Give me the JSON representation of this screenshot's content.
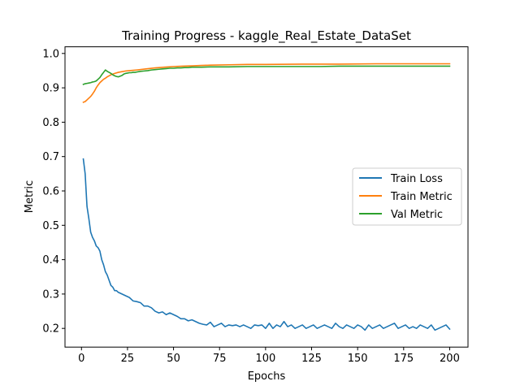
{
  "chart_data": {
    "type": "line",
    "title": "Training Progress - kaggle_Real_Estate_DataSet",
    "xlabel": "Epochs",
    "ylabel": "Metric",
    "xlim": [
      -8.95,
      209.95
    ],
    "ylim": [
      0.1456,
      1.0194
    ],
    "xticks": [
      0,
      25,
      50,
      75,
      100,
      125,
      150,
      175,
      200
    ],
    "yticks": [
      0.2,
      0.3,
      0.4,
      0.5,
      0.6,
      0.7,
      0.8,
      0.9,
      1.0
    ],
    "xtick_labels": [
      "0",
      "25",
      "50",
      "75",
      "100",
      "125",
      "150",
      "175",
      "200"
    ],
    "ytick_labels": [
      "0.2",
      "0.3",
      "0.4",
      "0.5",
      "0.6",
      "0.7",
      "0.8",
      "0.9",
      "1.0"
    ],
    "grid": false,
    "legend_position": "center-right",
    "series": [
      {
        "name": "Train Loss",
        "color": "#1f77b4",
        "x": [
          1,
          2,
          3,
          4,
          5,
          6,
          7,
          8,
          9,
          10,
          11,
          12,
          13,
          14,
          15,
          16,
          17,
          18,
          19,
          20,
          22,
          24,
          26,
          28,
          30,
          32,
          34,
          36,
          38,
          40,
          42,
          44,
          46,
          48,
          50,
          52,
          54,
          56,
          58,
          60,
          62,
          64,
          66,
          68,
          70,
          72,
          74,
          76,
          78,
          80,
          82,
          84,
          86,
          88,
          90,
          92,
          94,
          96,
          98,
          100,
          102,
          104,
          106,
          108,
          110,
          112,
          114,
          116,
          118,
          120,
          122,
          124,
          126,
          128,
          130,
          132,
          134,
          136,
          138,
          140,
          142,
          144,
          146,
          148,
          150,
          152,
          154,
          156,
          158,
          160,
          162,
          164,
          166,
          168,
          170,
          172,
          174,
          176,
          178,
          180,
          182,
          184,
          186,
          188,
          190,
          192,
          194,
          196,
          198,
          200
        ],
        "values": [
          0.693,
          0.65,
          0.555,
          0.52,
          0.48,
          0.465,
          0.455,
          0.44,
          0.435,
          0.425,
          0.4,
          0.385,
          0.365,
          0.355,
          0.34,
          0.325,
          0.32,
          0.31,
          0.31,
          0.305,
          0.3,
          0.295,
          0.29,
          0.28,
          0.278,
          0.275,
          0.265,
          0.265,
          0.26,
          0.25,
          0.245,
          0.248,
          0.24,
          0.245,
          0.24,
          0.235,
          0.228,
          0.228,
          0.222,
          0.225,
          0.22,
          0.215,
          0.212,
          0.21,
          0.218,
          0.205,
          0.21,
          0.215,
          0.205,
          0.21,
          0.208,
          0.21,
          0.205,
          0.21,
          0.205,
          0.2,
          0.21,
          0.208,
          0.21,
          0.2,
          0.215,
          0.2,
          0.21,
          0.205,
          0.22,
          0.205,
          0.21,
          0.2,
          0.205,
          0.21,
          0.2,
          0.205,
          0.21,
          0.2,
          0.205,
          0.21,
          0.205,
          0.2,
          0.215,
          0.205,
          0.2,
          0.21,
          0.205,
          0.2,
          0.21,
          0.205,
          0.195,
          0.21,
          0.2,
          0.205,
          0.21,
          0.2,
          0.205,
          0.21,
          0.215,
          0.2,
          0.205,
          0.21,
          0.2,
          0.205,
          0.2,
          0.21,
          0.205,
          0.2,
          0.21,
          0.195,
          0.2,
          0.205,
          0.21,
          0.198
        ]
      },
      {
        "name": "Train Metric",
        "color": "#ff7f0e",
        "x": [
          1,
          2,
          3,
          4,
          5,
          6,
          7,
          8,
          9,
          10,
          11,
          12,
          13,
          14,
          15,
          16,
          18,
          20,
          22,
          24,
          26,
          28,
          30,
          35,
          40,
          45,
          50,
          55,
          60,
          65,
          70,
          80,
          90,
          100,
          120,
          140,
          160,
          180,
          200
        ],
        "values": [
          0.858,
          0.86,
          0.865,
          0.87,
          0.875,
          0.882,
          0.89,
          0.9,
          0.908,
          0.915,
          0.92,
          0.925,
          0.928,
          0.932,
          0.935,
          0.938,
          0.942,
          0.945,
          0.947,
          0.949,
          0.95,
          0.951,
          0.952,
          0.955,
          0.958,
          0.96,
          0.962,
          0.963,
          0.964,
          0.965,
          0.966,
          0.967,
          0.968,
          0.968,
          0.969,
          0.969,
          0.97,
          0.97,
          0.97
        ]
      },
      {
        "name": "Val Metric",
        "color": "#2ca02c",
        "x": [
          1,
          2,
          3,
          4,
          5,
          6,
          7,
          8,
          9,
          10,
          11,
          12,
          13,
          14,
          15,
          16,
          17,
          18,
          19,
          20,
          21,
          22,
          23,
          24,
          25,
          26,
          27,
          28,
          29,
          30,
          32,
          34,
          36,
          38,
          40,
          42,
          44,
          46,
          48,
          50,
          52,
          54,
          56,
          58,
          60,
          65,
          70,
          80,
          90,
          100,
          110,
          120,
          130,
          140,
          150,
          160,
          170,
          180,
          190,
          200
        ],
        "values": [
          0.91,
          0.912,
          0.913,
          0.914,
          0.915,
          0.917,
          0.918,
          0.92,
          0.925,
          0.93,
          0.938,
          0.945,
          0.952,
          0.948,
          0.945,
          0.942,
          0.938,
          0.935,
          0.933,
          0.932,
          0.934,
          0.936,
          0.94,
          0.942,
          0.943,
          0.944,
          0.944,
          0.945,
          0.945,
          0.946,
          0.948,
          0.949,
          0.95,
          0.952,
          0.953,
          0.954,
          0.955,
          0.956,
          0.957,
          0.957,
          0.958,
          0.958,
          0.959,
          0.959,
          0.96,
          0.96,
          0.961,
          0.961,
          0.962,
          0.962,
          0.962,
          0.962,
          0.962,
          0.963,
          0.963,
          0.963,
          0.963,
          0.963,
          0.963,
          0.963
        ]
      }
    ]
  }
}
